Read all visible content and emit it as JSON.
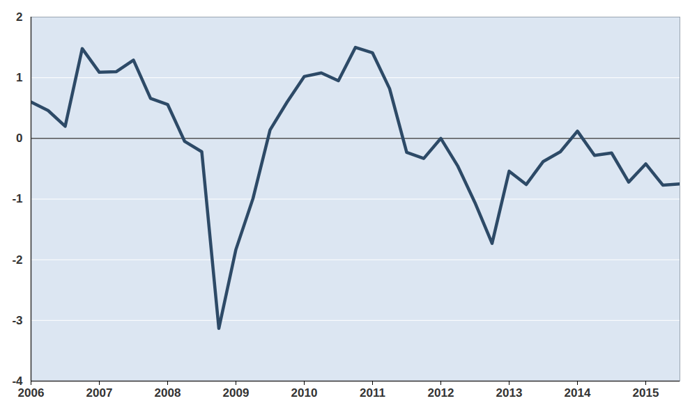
{
  "chart_data": {
    "type": "line",
    "x": [
      2006,
      2006.25,
      2006.5,
      2006.75,
      2007,
      2007.25,
      2007.5,
      2007.75,
      2008,
      2008.25,
      2008.5,
      2008.75,
      2009,
      2009.25,
      2009.5,
      2009.75,
      2010,
      2010.25,
      2010.5,
      2010.75,
      2011,
      2011.25,
      2011.5,
      2011.75,
      2012,
      2012.25,
      2012.5,
      2012.75,
      2013,
      2013.25,
      2013.5,
      2013.75,
      2014,
      2014.25,
      2014.5,
      2014.75,
      2015,
      2015.25,
      2015.5
    ],
    "series": [
      {
        "color": "#2d4a67",
        "values": [
          0.6,
          0.46,
          0.2,
          1.48,
          1.09,
          1.1,
          1.29,
          0.66,
          0.56,
          -0.05,
          -0.22,
          -3.13,
          -1.83,
          -0.99,
          0.14,
          0.6,
          1.02,
          1.08,
          0.95,
          1.5,
          1.41,
          0.82,
          -0.23,
          -0.33,
          0.0,
          -0.46,
          -1.06,
          -1.73,
          -0.54,
          -0.76,
          -0.38,
          -0.22,
          0.12,
          -0.28,
          -0.24,
          -0.72,
          -0.42,
          -0.77,
          -0.75
        ]
      }
    ],
    "xlim": [
      2006,
      2015.5
    ],
    "xticks": [
      2006,
      2007,
      2008,
      2009,
      2010,
      2011,
      2012,
      2013,
      2014,
      2015
    ],
    "ylim": [
      -4,
      2
    ],
    "yticks": [
      -4,
      -3,
      -2,
      -1,
      0,
      1,
      2
    ],
    "grid": true
  }
}
